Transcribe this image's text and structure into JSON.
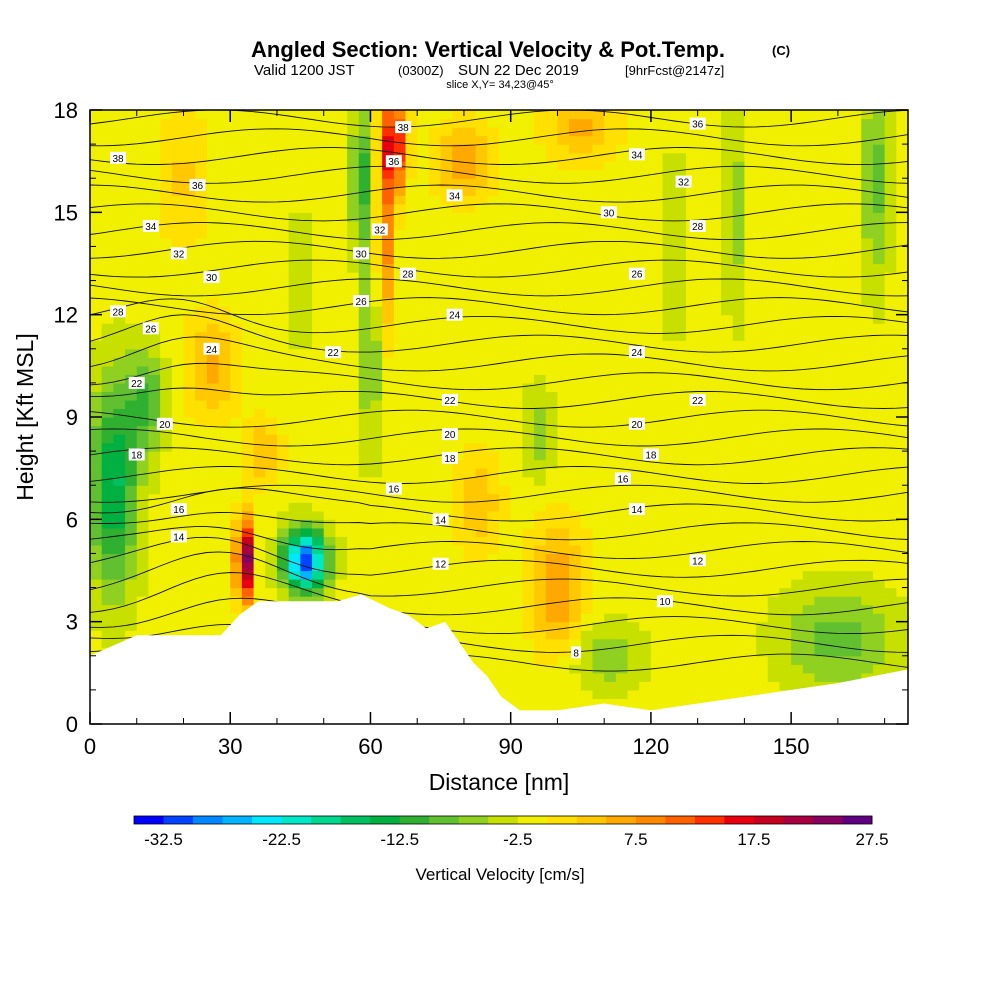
{
  "header": {
    "title": "Angled Section: Vertical Velocity & Pot.Temp.",
    "title_tag": "(C)",
    "valid_prefix": "Valid 1200 JST",
    "valid_zulu": "(0300Z)",
    "valid_date": "SUN 22 Dec 2019",
    "forecast": "[9hrFcst@2147z]",
    "slice": "slice X,Y= 34,23@45°"
  },
  "chart_data": {
    "type": "heatmap",
    "title": "Angled Section: Vertical Velocity & Pot.Temp.",
    "xlabel": "Distance [nm]",
    "ylabel": "Height [Kft MSL]",
    "xlim": [
      0,
      175
    ],
    "ylim": [
      0,
      18
    ],
    "xticks": [
      0,
      30,
      60,
      90,
      120,
      150
    ],
    "yticks": [
      0,
      3,
      6,
      9,
      12,
      15,
      18
    ],
    "colorbar": {
      "title": "Vertical Velocity [cm/s]",
      "tick_labels": [
        "-32.5",
        "-22.5",
        "-12.5",
        "-2.5",
        "7.5",
        "17.5",
        "27.5"
      ],
      "range": [
        -35,
        35
      ],
      "colors": [
        "#0000ff",
        "#0044ff",
        "#0088ff",
        "#00b4ff",
        "#00e8ff",
        "#00e8c8",
        "#00d890",
        "#00c060",
        "#00b040",
        "#30b030",
        "#60c030",
        "#90d020",
        "#c8e000",
        "#f0f000",
        "#ffe000",
        "#ffc800",
        "#ffa800",
        "#ff8800",
        "#ff6000",
        "#ff3000",
        "#e80010",
        "#c80020",
        "#a80040",
        "#880060",
        "#600080"
      ]
    },
    "terrain": [
      [
        0,
        2
      ],
      [
        5,
        2.3
      ],
      [
        10,
        2.6
      ],
      [
        20,
        2.6
      ],
      [
        28,
        2.6
      ],
      [
        32,
        3.2
      ],
      [
        36,
        3.6
      ],
      [
        45,
        3.6
      ],
      [
        53,
        3.6
      ],
      [
        58,
        3.8
      ],
      [
        64,
        3.4
      ],
      [
        68,
        3.2
      ],
      [
        72,
        2.8
      ],
      [
        76,
        3.0
      ],
      [
        79,
        2.4
      ],
      [
        82,
        1.8
      ],
      [
        85,
        1.4
      ],
      [
        88,
        0.8
      ],
      [
        92,
        0.4
      ],
      [
        100,
        0.4
      ],
      [
        110,
        0.6
      ],
      [
        120,
        0.4
      ],
      [
        130,
        0.6
      ],
      [
        140,
        0.8
      ],
      [
        150,
        1.0
      ],
      [
        160,
        1.2
      ],
      [
        175,
        1.6
      ]
    ],
    "theta_contour_labels": [
      {
        "value": "38",
        "x": 6,
        "y": 16.6
      },
      {
        "value": "36",
        "x": 23,
        "y": 15.8
      },
      {
        "value": "34",
        "x": 13,
        "y": 14.6
      },
      {
        "value": "32",
        "x": 19,
        "y": 13.8
      },
      {
        "value": "30",
        "x": 26,
        "y": 13.1
      },
      {
        "value": "28",
        "x": 6,
        "y": 12.1
      },
      {
        "value": "26",
        "x": 13,
        "y": 11.6
      },
      {
        "value": "24",
        "x": 26,
        "y": 11.0
      },
      {
        "value": "22",
        "x": 10,
        "y": 10.0
      },
      {
        "value": "20",
        "x": 16,
        "y": 8.8
      },
      {
        "value": "18",
        "x": 10,
        "y": 7.9
      },
      {
        "value": "16",
        "x": 19,
        "y": 6.3
      },
      {
        "value": "14",
        "x": 19,
        "y": 5.5
      },
      {
        "value": "38",
        "x": 67,
        "y": 17.5
      },
      {
        "value": "36",
        "x": 65,
        "y": 16.5
      },
      {
        "value": "32",
        "x": 62,
        "y": 14.5
      },
      {
        "value": "30",
        "x": 58,
        "y": 13.8
      },
      {
        "value": "28",
        "x": 68,
        "y": 13.2
      },
      {
        "value": "26",
        "x": 58,
        "y": 12.4
      },
      {
        "value": "22",
        "x": 52,
        "y": 10.9
      },
      {
        "value": "34",
        "x": 78,
        "y": 15.5
      },
      {
        "value": "24",
        "x": 78,
        "y": 12.0
      },
      {
        "value": "22",
        "x": 77,
        "y": 9.5
      },
      {
        "value": "20",
        "x": 77,
        "y": 8.5
      },
      {
        "value": "18",
        "x": 77,
        "y": 7.8
      },
      {
        "value": "16",
        "x": 65,
        "y": 6.9
      },
      {
        "value": "14",
        "x": 75,
        "y": 6.0
      },
      {
        "value": "12",
        "x": 75,
        "y": 4.7
      },
      {
        "value": "8",
        "x": 104,
        "y": 2.1
      },
      {
        "value": "36",
        "x": 130,
        "y": 17.6
      },
      {
        "value": "34",
        "x": 117,
        "y": 16.7
      },
      {
        "value": "32",
        "x": 127,
        "y": 15.9
      },
      {
        "value": "30",
        "x": 111,
        "y": 15.0
      },
      {
        "value": "28",
        "x": 130,
        "y": 14.6
      },
      {
        "value": "26",
        "x": 117,
        "y": 13.2
      },
      {
        "value": "24",
        "x": 117,
        "y": 10.9
      },
      {
        "value": "22",
        "x": 130,
        "y": 9.5
      },
      {
        "value": "20",
        "x": 117,
        "y": 8.8
      },
      {
        "value": "18",
        "x": 120,
        "y": 7.9
      },
      {
        "value": "16",
        "x": 114,
        "y": 7.2
      },
      {
        "value": "14",
        "x": 117,
        "y": 6.3
      },
      {
        "value": "12",
        "x": 130,
        "y": 4.8
      },
      {
        "value": "10",
        "x": 123,
        "y": 3.6
      }
    ]
  }
}
